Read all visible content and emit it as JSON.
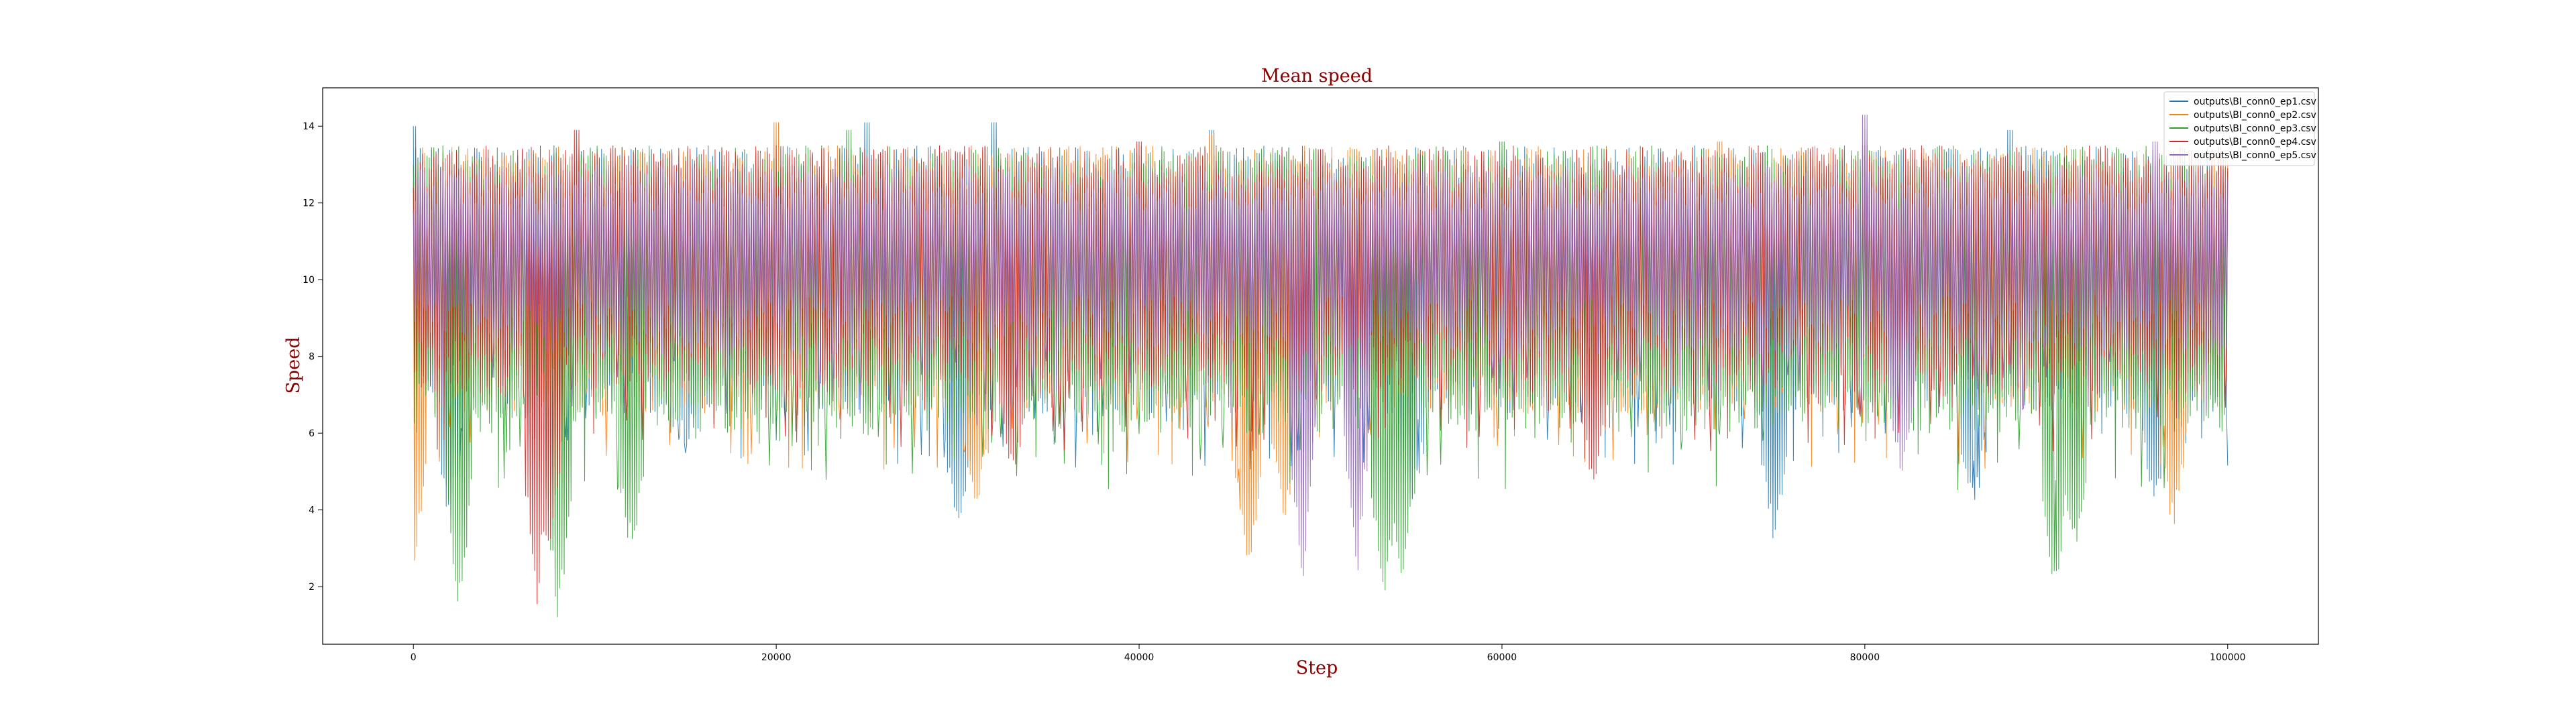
{
  "chart_data": {
    "type": "line",
    "title": "Mean speed",
    "xlabel": "Step",
    "ylabel": "Speed",
    "xlim": [
      -5000,
      105000
    ],
    "ylim": [
      0.5,
      15.0
    ],
    "x_ticks": [
      0,
      20000,
      40000,
      60000,
      80000,
      100000
    ],
    "y_ticks": [
      2,
      4,
      6,
      8,
      10,
      12,
      14
    ],
    "legend_position": "top-right",
    "x_range": [
      0,
      100000
    ],
    "series": [
      {
        "name": "outputs\\BI_conn0_ep1.csv",
        "color": "#1f77b4",
        "typical_range": [
          6.5,
          13.5
        ],
        "min_dips": [
          [
            2000,
            3.6
          ],
          [
            15000,
            5.5
          ],
          [
            30000,
            3.2
          ],
          [
            55000,
            3.9
          ],
          [
            75000,
            2.9
          ],
          [
            86000,
            3.8
          ],
          [
            96000,
            4.0
          ]
        ],
        "max_peaks": [
          [
            0,
            14.0
          ],
          [
            25000,
            14.1
          ],
          [
            32000,
            14.1
          ],
          [
            44000,
            13.9
          ],
          [
            88000,
            13.9
          ]
        ]
      },
      {
        "name": "outputs\\BI_conn0_ep2.csv",
        "color": "#ff7f0e",
        "typical_range": [
          6.5,
          13.5
        ],
        "min_dips": [
          [
            0,
            2.0
          ],
          [
            31000,
            3.8
          ],
          [
            46000,
            2.0
          ],
          [
            48000,
            3.6
          ],
          [
            97000,
            3.3
          ]
        ],
        "max_peaks": [
          [
            20000,
            14.1
          ],
          [
            44000,
            13.8
          ],
          [
            72000,
            13.6
          ]
        ]
      },
      {
        "name": "outputs\\BI_conn0_ep3.csv",
        "color": "#2ca02c",
        "typical_range": [
          6.0,
          13.5
        ],
        "min_dips": [
          [
            2500,
            1.2
          ],
          [
            8000,
            0.9
          ],
          [
            12000,
            2.7
          ],
          [
            53500,
            1.2
          ],
          [
            54500,
            1.7
          ],
          [
            90500,
            1.4
          ],
          [
            91500,
            2.6
          ]
        ],
        "max_peaks": [
          [
            0,
            13.0
          ],
          [
            24000,
            13.9
          ],
          [
            60000,
            13.6
          ]
        ]
      },
      {
        "name": "outputs\\BI_conn0_ep4.csv",
        "color": "#d62728",
        "typical_range": [
          7.0,
          13.5
        ],
        "min_dips": [
          [
            6800,
            1.4
          ],
          [
            7500,
            2.4
          ],
          [
            33000,
            4.6
          ],
          [
            65000,
            4.3
          ]
        ],
        "max_peaks": [
          [
            9000,
            13.9
          ],
          [
            40000,
            13.6
          ],
          [
            50000,
            13.4
          ],
          [
            80000,
            13.5
          ]
        ]
      },
      {
        "name": "outputs\\BI_conn0_ep5.csv",
        "color": "#9467bd",
        "typical_range": [
          8.0,
          13.0
        ],
        "min_dips": [
          [
            49000,
            1.6
          ],
          [
            52000,
            2.1
          ],
          [
            82000,
            4.5
          ]
        ],
        "max_peaks": [
          [
            80000,
            14.3
          ],
          [
            96000,
            13.6
          ]
        ]
      }
    ]
  }
}
